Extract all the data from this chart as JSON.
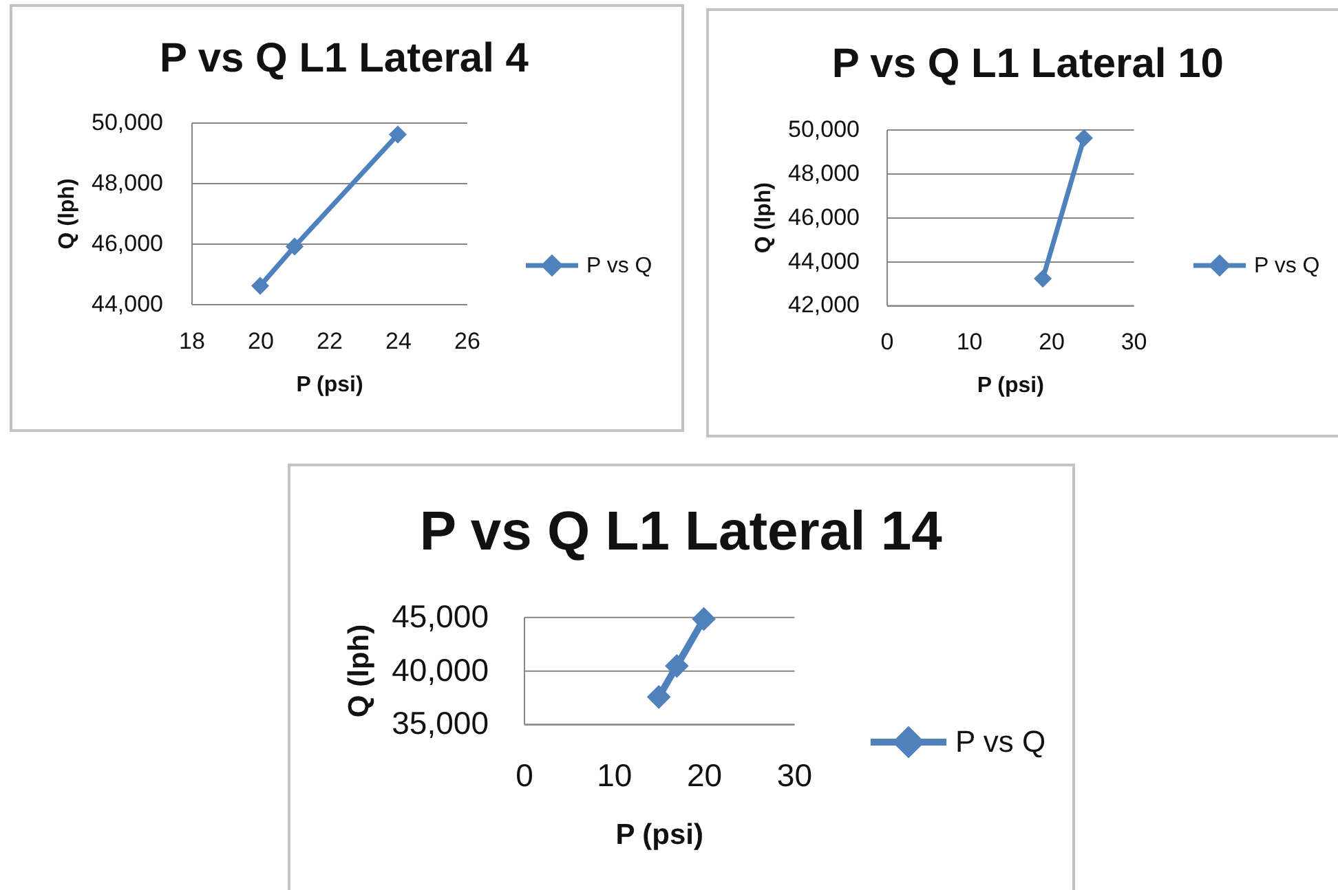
{
  "chart_data": [
    {
      "type": "line",
      "title": "P vs Q L1 Lateral 4",
      "xlabel": "P (psi)",
      "ylabel": "Q (lph)",
      "x": [
        20,
        21,
        24
      ],
      "series": [
        {
          "name": "P vs Q",
          "color": "#4f81bd",
          "values": [
            44600,
            45900,
            49600
          ]
        }
      ],
      "xlim": [
        18,
        26
      ],
      "xticks": [
        18,
        20,
        22,
        24,
        26
      ],
      "ylim": [
        44000,
        50000
      ],
      "yticks": [
        {
          "value": 44000,
          "label": "44,000"
        },
        {
          "value": 46000,
          "label": "46,000"
        },
        {
          "value": 48000,
          "label": "48,000"
        },
        {
          "value": 50000,
          "label": "50,000"
        }
      ],
      "grid": "y",
      "legend": "right",
      "marker": "diamond",
      "line_style": "solid"
    },
    {
      "type": "line",
      "title": "P vs Q L1 Lateral 10",
      "xlabel": "P (psi)",
      "ylabel": "Q (lph)",
      "x": [
        19,
        24
      ],
      "series": [
        {
          "name": "P vs Q",
          "color": "#4f81bd",
          "values": [
            43200,
            49600
          ]
        }
      ],
      "xlim": [
        0,
        30
      ],
      "xticks": [
        0,
        10,
        20,
        30
      ],
      "ylim": [
        42000,
        50000
      ],
      "yticks": [
        {
          "value": 42000,
          "label": "42,000"
        },
        {
          "value": 44000,
          "label": "44,000"
        },
        {
          "value": 46000,
          "label": "46,000"
        },
        {
          "value": 48000,
          "label": "48,000"
        },
        {
          "value": 50000,
          "label": "50,000"
        }
      ],
      "grid": "y",
      "legend": "right",
      "marker": "diamond",
      "line_style": "solid"
    },
    {
      "type": "line",
      "title": "P vs Q L1 Lateral 14",
      "xlabel": "P (psi)",
      "ylabel": "Q (lph)",
      "x": [
        15,
        17,
        20
      ],
      "series": [
        {
          "name": "P vs Q",
          "color": "#4f81bd",
          "values": [
            37500,
            40400,
            44800
          ]
        }
      ],
      "xlim": [
        0,
        30
      ],
      "xticks": [
        0,
        10,
        20,
        30
      ],
      "ylim": [
        35000,
        45000
      ],
      "yticks": [
        {
          "value": 35000,
          "label": "35,000"
        },
        {
          "value": 40000,
          "label": "40,000"
        },
        {
          "value": 45000,
          "label": "45,000"
        }
      ],
      "grid": "y",
      "legend": "right",
      "marker": "diamond",
      "line_style": "solid"
    }
  ]
}
